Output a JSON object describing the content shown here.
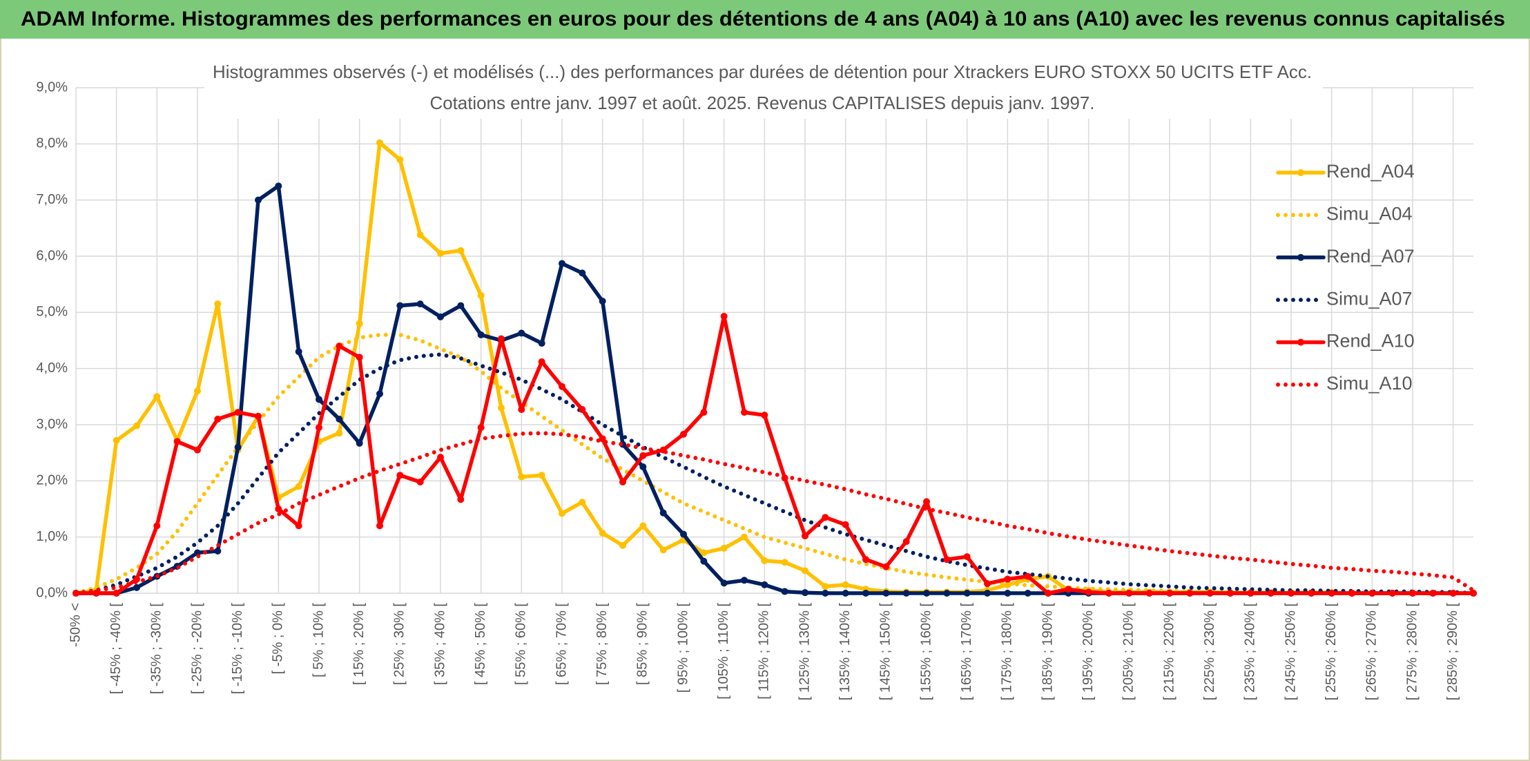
{
  "header": {
    "title": "ADAM Informe. Histogrammes des performances en euros pour des détentions de 4 ans (A04) à 10 ans (A10) avec les revenus connus capitalisés"
  },
  "chart_data": {
    "type": "line",
    "title": "Histogrammes observés (-) et modélisés (...) des performances par durées de détention pour Xtrackers EURO STOXX 50 UCITS ETF Acc.",
    "subtitle": "Cotations entre janv. 1997 et août. 2025. Revenus CAPITALISES depuis janv. 1997.",
    "categories": [
      "-50% <",
      null,
      "[ -45% ; -40% [",
      null,
      "[ -35% ; -30% [",
      null,
      "[ -25% ; -20% [",
      null,
      "[ -15% ; -10% [",
      null,
      "[ -5% ; 0% [",
      null,
      "[ 5% ; 10% [",
      null,
      "[ 15% ; 20% [",
      null,
      "[ 25% ; 30% [",
      null,
      "[ 35% ; 40% [",
      null,
      "[ 45% ; 50% [",
      null,
      "[ 55% ; 60% [",
      null,
      "[ 65% ; 70% [",
      null,
      "[ 75% ; 80% [",
      null,
      "[ 85% ; 90% [",
      null,
      "[ 95% ; 100% [",
      null,
      "[ 105% ; 110% [",
      null,
      "[ 115% ; 120% [",
      null,
      "[ 125% ; 130% [",
      null,
      "[ 135% ; 140% [",
      null,
      "[ 145% ; 150% [",
      null,
      "[ 155% ; 160% [",
      null,
      "[ 165% ; 170% [",
      null,
      "[ 175% ; 180% [",
      null,
      "[ 185% ; 190% [",
      null,
      "[ 195% ; 200% [",
      null,
      "[ 205% ; 210% [",
      null,
      "[ 215% ; 220% [",
      null,
      "[ 225% ; 230% [",
      null,
      "[ 235% ; 240% [",
      null,
      "[ 245% ; 250% [",
      null,
      "[ 255% ; 260% [",
      null,
      "[ 265% ; 270% [",
      null,
      "[ 275% ; 280% [",
      null,
      "[ 285% ; 290% [",
      null
    ],
    "series": [
      {
        "name": "Rend_A04",
        "color": "#FFC000",
        "line_style": "solid",
        "markers": true,
        "values": [
          0,
          0.05,
          2.72,
          2.98,
          3.5,
          2.72,
          3.6,
          5.15,
          2.55,
          3.15,
          1.7,
          1.9,
          2.7,
          2.85,
          4.8,
          8.02,
          7.72,
          6.38,
          6.05,
          6.1,
          5.3,
          3.3,
          2.07,
          2.1,
          1.42,
          1.62,
          1.07,
          0.85,
          1.2,
          0.77,
          0.95,
          0.72,
          0.8,
          1.0,
          0.58,
          0.55,
          0.4,
          0.12,
          0.15,
          0.07,
          0.03,
          0.02,
          0.02,
          0.02,
          0.02,
          0.05,
          0.15,
          0.25,
          0.3,
          0.05,
          0.05,
          0.02,
          0.02,
          0.02,
          0.02,
          0.02,
          0.02,
          0.01,
          0.01,
          0.01,
          0.01,
          0.01,
          0.01,
          0,
          0,
          0,
          0,
          0,
          0,
          0
        ]
      },
      {
        "name": "Simu_A04",
        "color": "#FFC000",
        "line_style": "dotted",
        "markers": false,
        "values": [
          0,
          0.1,
          0.25,
          0.45,
          0.7,
          1.1,
          1.6,
          2.1,
          2.6,
          3.05,
          3.5,
          3.85,
          4.2,
          4.4,
          4.55,
          4.6,
          4.6,
          4.5,
          4.35,
          4.2,
          3.95,
          3.65,
          3.4,
          3.15,
          2.9,
          2.65,
          2.4,
          2.2,
          2.0,
          1.8,
          1.6,
          1.45,
          1.3,
          1.15,
          1.0,
          0.9,
          0.8,
          0.7,
          0.6,
          0.52,
          0.45,
          0.38,
          0.33,
          0.28,
          0.24,
          0.2,
          0.17,
          0.14,
          0.12,
          0.1,
          0.08,
          0.07,
          0.06,
          0.05,
          0.04,
          0.03,
          0.03,
          0.02,
          0.02,
          0.02,
          0.01,
          0.01,
          0.01,
          0.01,
          0.01,
          0,
          0,
          0,
          0,
          0
        ]
      },
      {
        "name": "Rend_A07",
        "color": "#002060",
        "line_style": "solid",
        "markers": true,
        "values": [
          0,
          0,
          0,
          0.1,
          0.3,
          0.48,
          0.72,
          0.75,
          2.6,
          7.0,
          7.25,
          4.3,
          3.45,
          3.1,
          2.67,
          3.55,
          5.12,
          5.15,
          4.92,
          5.12,
          4.6,
          4.5,
          4.63,
          4.45,
          5.87,
          5.7,
          5.2,
          2.65,
          2.25,
          1.43,
          1.05,
          0.57,
          0.18,
          0.23,
          0.15,
          0.03,
          0.01,
          0,
          0,
          0,
          0,
          0,
          0,
          0,
          0,
          0,
          0,
          0,
          0,
          0,
          0,
          0,
          0,
          0,
          0,
          0,
          0,
          0,
          0,
          0,
          0,
          0,
          0,
          0,
          0,
          0,
          0,
          0,
          0,
          0
        ]
      },
      {
        "name": "Simu_A07",
        "color": "#002060",
        "line_style": "dotted",
        "markers": false,
        "values": [
          0,
          0.05,
          0.15,
          0.3,
          0.45,
          0.65,
          0.9,
          1.2,
          1.6,
          2.05,
          2.5,
          2.85,
          3.2,
          3.5,
          3.8,
          4.0,
          4.15,
          4.22,
          4.25,
          4.18,
          4.05,
          3.93,
          3.8,
          3.63,
          3.45,
          3.23,
          3.0,
          2.8,
          2.6,
          2.42,
          2.25,
          2.07,
          1.9,
          1.75,
          1.6,
          1.45,
          1.3,
          1.17,
          1.05,
          0.95,
          0.85,
          0.75,
          0.65,
          0.57,
          0.5,
          0.44,
          0.38,
          0.34,
          0.3,
          0.26,
          0.22,
          0.19,
          0.16,
          0.14,
          0.12,
          0.1,
          0.09,
          0.08,
          0.07,
          0.06,
          0.05,
          0.05,
          0.04,
          0.04,
          0.03,
          0.03,
          0.03,
          0.02,
          0.02,
          0
        ]
      },
      {
        "name": "Rend_A10",
        "color": "#FF0000",
        "line_style": "solid",
        "markers": true,
        "values": [
          0,
          0,
          0,
          0.25,
          1.2,
          2.7,
          2.55,
          3.1,
          3.22,
          3.15,
          1.5,
          1.2,
          2.95,
          4.4,
          4.2,
          1.2,
          2.1,
          1.98,
          2.42,
          1.67,
          2.95,
          4.53,
          3.27,
          4.12,
          3.68,
          3.27,
          2.75,
          1.98,
          2.45,
          2.55,
          2.83,
          3.22,
          4.93,
          3.22,
          3.17,
          2.05,
          1.02,
          1.35,
          1.22,
          0.6,
          0.47,
          0.92,
          1.63,
          0.6,
          0.65,
          0.17,
          0.25,
          0.3,
          0,
          0.07,
          0.02,
          0,
          0,
          0,
          0,
          0,
          0,
          0,
          0,
          0,
          0,
          0,
          0,
          0,
          0,
          0,
          0,
          0,
          0,
          0
        ]
      },
      {
        "name": "Simu_A10",
        "color": "#FF0000",
        "line_style": "dotted",
        "markers": false,
        "values": [
          0,
          0.05,
          0.1,
          0.2,
          0.3,
          0.45,
          0.65,
          0.85,
          1.05,
          1.25,
          1.4,
          1.6,
          1.75,
          1.9,
          2.05,
          2.18,
          2.3,
          2.42,
          2.55,
          2.65,
          2.75,
          2.8,
          2.84,
          2.85,
          2.83,
          2.78,
          2.7,
          2.65,
          2.58,
          2.52,
          2.45,
          2.38,
          2.3,
          2.23,
          2.15,
          2.08,
          2.0,
          1.93,
          1.85,
          1.76,
          1.68,
          1.59,
          1.5,
          1.43,
          1.35,
          1.28,
          1.2,
          1.14,
          1.07,
          1.01,
          0.95,
          0.9,
          0.85,
          0.8,
          0.75,
          0.71,
          0.67,
          0.63,
          0.6,
          0.56,
          0.52,
          0.49,
          0.45,
          0.43,
          0.4,
          0.38,
          0.35,
          0.32,
          0.28,
          0.05
        ]
      }
    ],
    "ylim": [
      0,
      9
    ],
    "yticks": [
      {
        "value": 0,
        "label": "0,0%"
      },
      {
        "value": 1,
        "label": "1,0%"
      },
      {
        "value": 2,
        "label": "2,0%"
      },
      {
        "value": 3,
        "label": "3,0%"
      },
      {
        "value": 4,
        "label": "4,0%"
      },
      {
        "value": 5,
        "label": "5,0%"
      },
      {
        "value": 6,
        "label": "6,0%"
      },
      {
        "value": 7,
        "label": "7,0%"
      },
      {
        "value": 8,
        "label": "8,0%"
      },
      {
        "value": 9,
        "label": "9,0%"
      }
    ],
    "grid": true,
    "legend": "right"
  }
}
